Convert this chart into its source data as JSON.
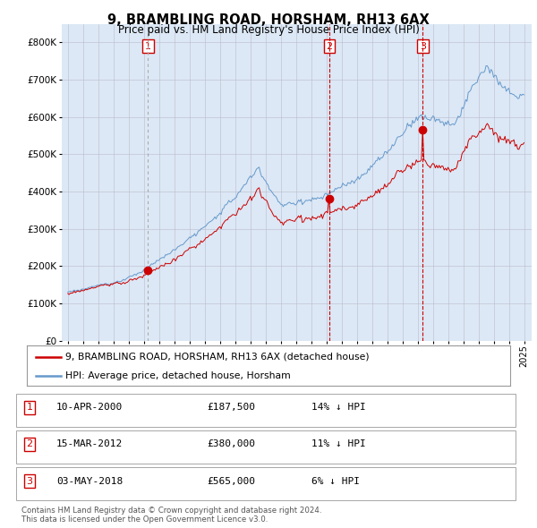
{
  "title1": "9, BRAMBLING ROAD, HORSHAM, RH13 6AX",
  "title2": "Price paid vs. HM Land Registry's House Price Index (HPI)",
  "ylim": [
    0,
    850000
  ],
  "yticks": [
    0,
    100000,
    200000,
    300000,
    400000,
    500000,
    600000,
    700000,
    800000
  ],
  "xlim_start": 1994.6,
  "xlim_end": 2025.5,
  "sale_dates": [
    2000.274,
    2012.204,
    2018.34
  ],
  "sale_prices": [
    187500,
    380000,
    565000
  ],
  "sale_labels": [
    "1",
    "2",
    "3"
  ],
  "sale_date_strs": [
    "10-APR-2000",
    "15-MAR-2012",
    "03-MAY-2018"
  ],
  "sale_price_strs": [
    "£187,500",
    "£380,000",
    "£565,000"
  ],
  "sale_pct_strs": [
    "14%",
    "11%",
    "6%"
  ],
  "legend_label_red": "9, BRAMBLING ROAD, HORSHAM, RH13 6AX (detached house)",
  "legend_label_blue": "HPI: Average price, detached house, Horsham",
  "footer": "Contains HM Land Registry data © Crown copyright and database right 2024.\nThis data is licensed under the Open Government Licence v3.0.",
  "red_color": "#cc0000",
  "blue_color": "#6699cc",
  "bg_color": "#dce8f5",
  "plot_bg": "#ffffff",
  "grid_color": "#bbbbcc"
}
